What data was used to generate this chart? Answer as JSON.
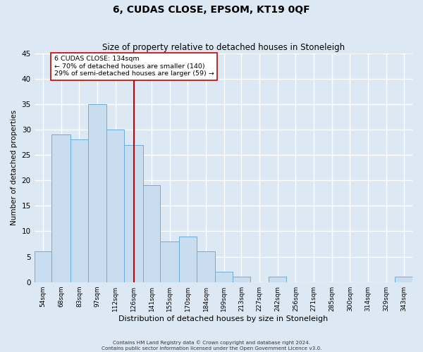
{
  "title": "6, CUDAS CLOSE, EPSOM, KT19 0QF",
  "subtitle": "Size of property relative to detached houses in Stoneleigh",
  "xlabel": "Distribution of detached houses by size in Stoneleigh",
  "ylabel": "Number of detached properties",
  "bin_labels": [
    "54sqm",
    "68sqm",
    "83sqm",
    "97sqm",
    "112sqm",
    "126sqm",
    "141sqm",
    "155sqm",
    "170sqm",
    "184sqm",
    "199sqm",
    "213sqm",
    "227sqm",
    "242sqm",
    "256sqm",
    "271sqm",
    "285sqm",
    "300sqm",
    "314sqm",
    "329sqm",
    "343sqm"
  ],
  "bar_values": [
    6,
    29,
    28,
    35,
    30,
    27,
    19,
    8,
    9,
    6,
    2,
    1,
    0,
    1,
    0,
    0,
    0,
    0,
    0,
    0,
    1
  ],
  "bin_edges": [
    54,
    68,
    83,
    97,
    112,
    126,
    141,
    155,
    170,
    184,
    199,
    213,
    227,
    242,
    256,
    271,
    285,
    300,
    314,
    329,
    343,
    357
  ],
  "bar_facecolor": "#c9ddf0",
  "bar_edgecolor": "#6aaed6",
  "vline_x": 134,
  "vline_color": "#cc0000",
  "annotation_box_text": "6 CUDAS CLOSE: 134sqm\n← 70% of detached houses are smaller (140)\n29% of semi-detached houses are larger (59) →",
  "annotation_box_facecolor": "#ffffff",
  "annotation_box_edgecolor": "#cc0000",
  "ylim": [
    0,
    45
  ],
  "yticks": [
    0,
    5,
    10,
    15,
    20,
    25,
    30,
    35,
    40,
    45
  ],
  "bg_color": "#dde8f5",
  "grid_color": "#ffffff",
  "footer_line1": "Contains HM Land Registry data © Crown copyright and database right 2024.",
  "footer_line2": "Contains public sector information licensed under the Open Government Licence v3.0."
}
